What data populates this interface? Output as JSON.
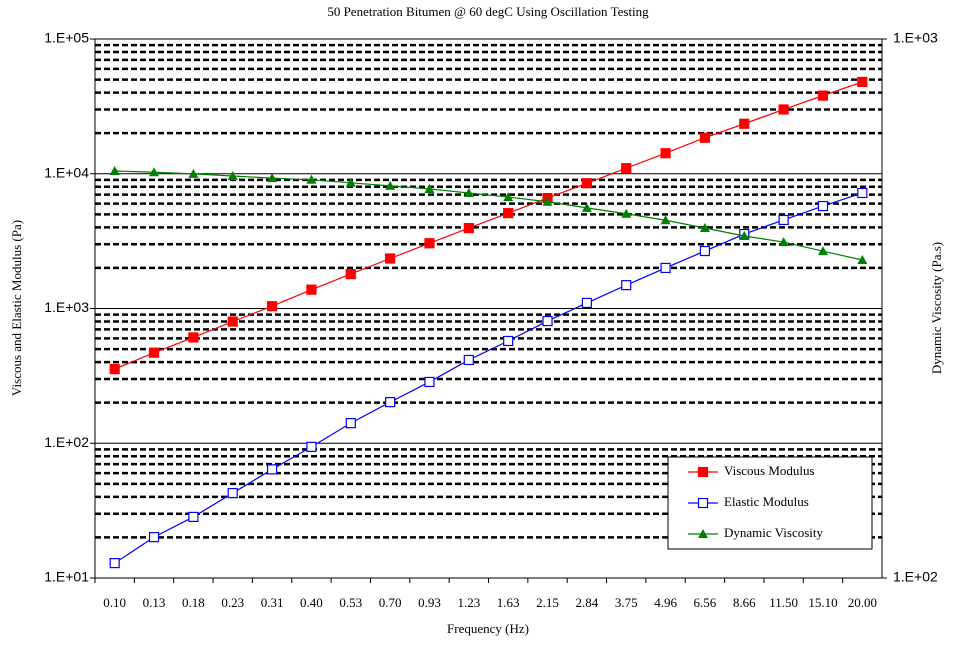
{
  "chart_data": {
    "type": "line",
    "title": "50 Penetration Bitumen @ 60 degC Using Oscillation Testing",
    "x_label": "Frequency (Hz)",
    "y_label": "Viscous and Elastic Modulus (Pa)",
    "y2_label": "Dynamic Viscosity (Pa.s)",
    "categories": [
      "0.10",
      "0.13",
      "0.18",
      "0.23",
      "0.31",
      "0.40",
      "0.53",
      "0.70",
      "0.93",
      "1.23",
      "1.63",
      "2.15",
      "2.84",
      "3.75",
      "4.96",
      "6.56",
      "8.66",
      "11.50",
      "15.10",
      "20.00"
    ],
    "y_scale": "log",
    "ylim": [
      10,
      100000
    ],
    "yticks": [
      {
        "value": 10,
        "label": "1.E+01"
      },
      {
        "value": 100,
        "label": "1.E+02"
      },
      {
        "value": 1000,
        "label": "1.E+03"
      },
      {
        "value": 10000,
        "label": "1.E+04"
      },
      {
        "value": 100000,
        "label": "1.E+05"
      }
    ],
    "y2lim": [
      100,
      1000
    ],
    "y2ticks": [
      {
        "value": 100,
        "label": "1.E+02"
      },
      {
        "value": 1000,
        "label": "1.E+03"
      }
    ],
    "grid": true,
    "legend": "lower right",
    "series": [
      {
        "name": "Viscous Modulus",
        "color": "#ff0000",
        "marker": "filled-square",
        "values": [
          355,
          470,
          610,
          800,
          1040,
          1380,
          1800,
          2350,
          3050,
          3950,
          5100,
          6600,
          8500,
          11000,
          14200,
          18500,
          23500,
          30000,
          38000,
          48000
        ]
      },
      {
        "name": "Elastic Modulus",
        "color": "#0000ff",
        "marker": "open-square",
        "values": [
          12.9,
          20.1,
          28.4,
          42.7,
          64,
          94,
          141,
          202,
          285,
          415,
          574,
          807,
          1100,
          1490,
          2000,
          2670,
          3570,
          4540,
          5760,
          7200
        ]
      },
      {
        "name": "Dynamic Viscosity",
        "color": "#008000",
        "marker": "triangle",
        "axis": "y2",
        "values": [
          569,
          566,
          562,
          557,
          552,
          548,
          541,
          534,
          527,
          518,
          509,
          499,
          486,
          474,
          461,
          446,
          431,
          420,
          404,
          389
        ]
      }
    ]
  }
}
